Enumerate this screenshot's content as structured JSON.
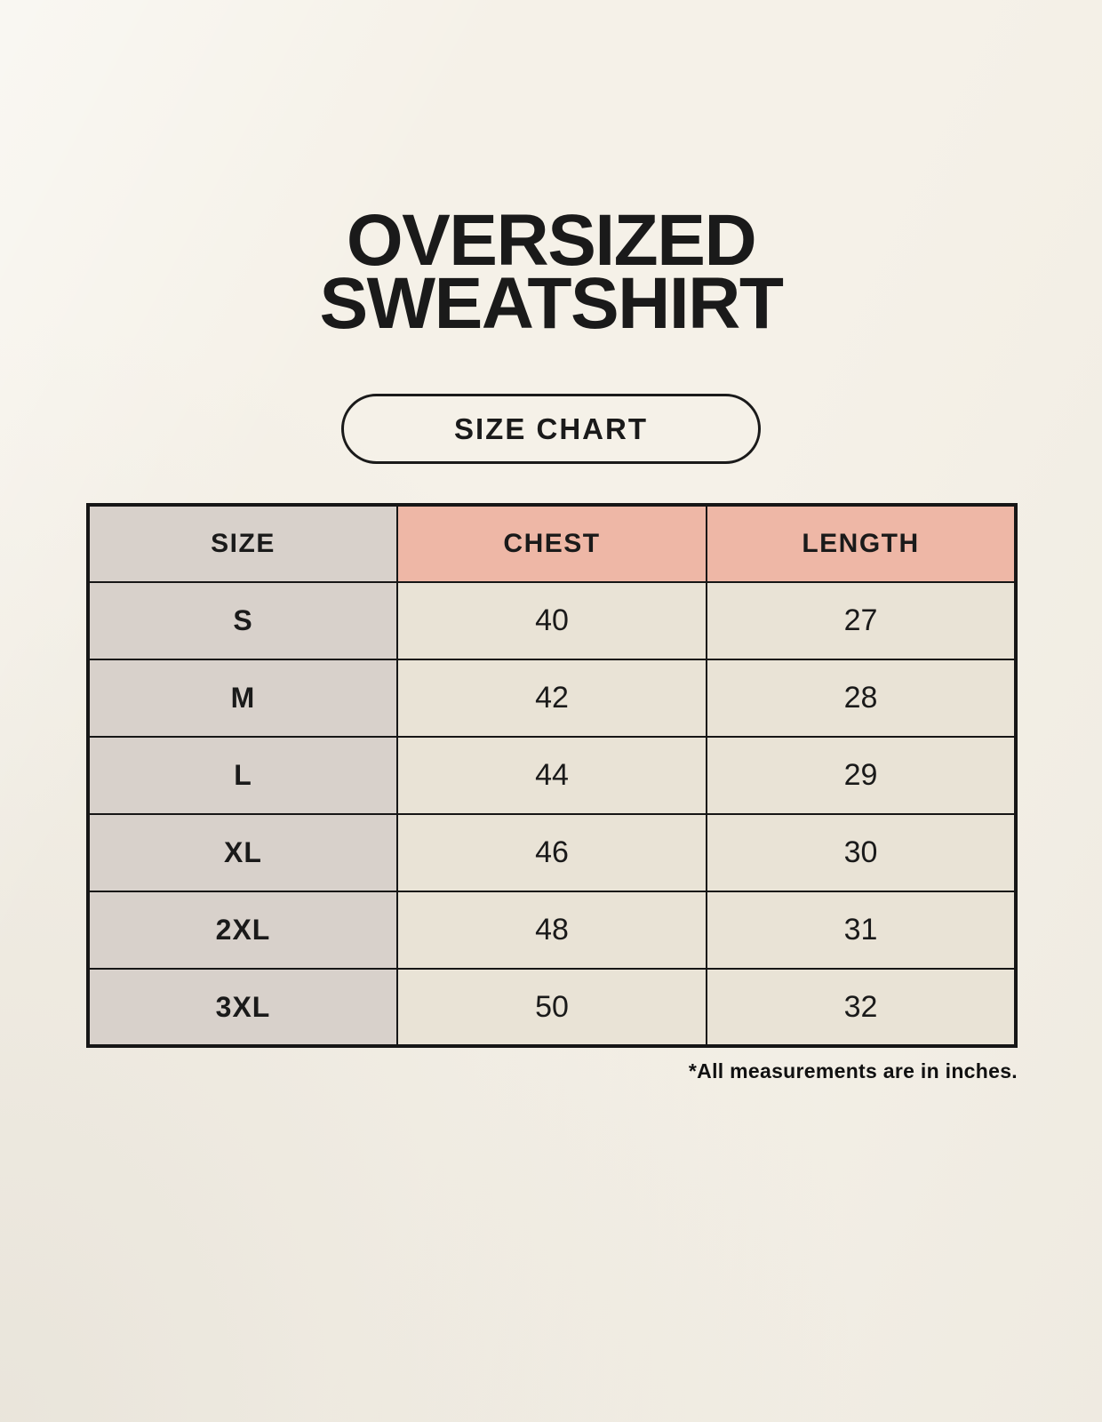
{
  "colors": {
    "background": "#F5F1E8",
    "ink": "#1A1A1A",
    "table-border": "#161616",
    "header-accent": "#EEB7A6",
    "label-cell": "#D8D1CB",
    "value-cell": "#E9E3D6"
  },
  "header": {
    "title_line1": "OVERSIZED",
    "title_line2": "SWEATSHIRT",
    "badge_label": "SIZE CHART"
  },
  "footnote": "*All measurements are in inches.",
  "chart_data": {
    "type": "table",
    "title": "OVERSIZED SWEATSHIRT",
    "subtitle": "SIZE CHART",
    "units": "inches",
    "columns": [
      "SIZE",
      "CHEST",
      "LENGTH"
    ],
    "rows": [
      {
        "size": "S",
        "chest": 40,
        "length": 27
      },
      {
        "size": "M",
        "chest": 42,
        "length": 28
      },
      {
        "size": "L",
        "chest": 44,
        "length": 29
      },
      {
        "size": "XL",
        "chest": 46,
        "length": 30
      },
      {
        "size": "2XL",
        "chest": 48,
        "length": 31
      },
      {
        "size": "3XL",
        "chest": 50,
        "length": 32
      }
    ]
  }
}
